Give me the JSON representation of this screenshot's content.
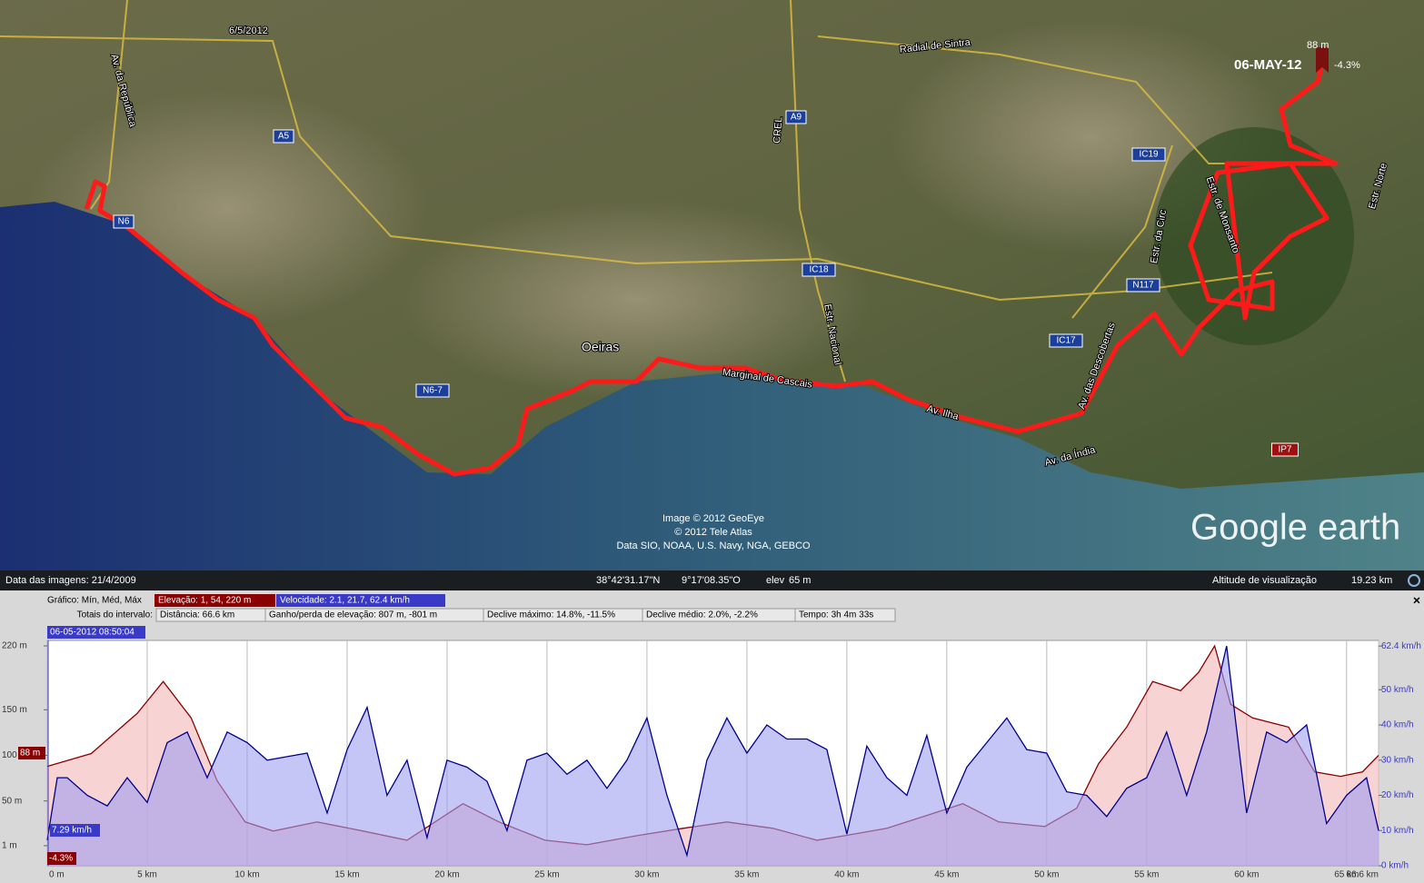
{
  "map": {
    "date_label": "6/5/2012",
    "labels": [
      "Radial de Sintra",
      "Av. da República",
      "Oeiras",
      "Estr. Nacional",
      "Av. das Descobertas",
      "Estr. de Monsanto",
      "Estr. da Circ",
      "Av. da Índia",
      "Marginal de Cascais",
      "Av. Ilha",
      "CREL",
      "Estr. Norte"
    ],
    "road_shields": [
      "A5",
      "A9",
      "IC18",
      "IC19",
      "N117",
      "IC17",
      "IP7",
      "N6-7",
      "N6"
    ],
    "attribution": [
      "Image © 2012 GeoEye",
      "© 2012 Tele Atlas",
      "Data SIO, NOAA, U.S. Navy, NGA, GEBCO"
    ],
    "logo": "Google earth",
    "marker": {
      "date": "06-MAY-12",
      "elevation": "88 m",
      "slope": "-4.3%"
    }
  },
  "status_bar": {
    "imagery_date": "Data das imagens: 21/4/2009",
    "latitude": "38°42'31.17\"N",
    "longitude": "9°17'08.35\"O",
    "elev_label": "elev",
    "elev": "65 m",
    "eye_label": "Altitude de visualização",
    "eye": "19.23 km"
  },
  "profile": {
    "graph_label": "Gráfico: Mín, Méd, Máx",
    "elevation_summary": "Elevação: 1, 54, 220 m",
    "speed_summary": "Velocidade: 2.1, 21.7, 62.4 km/h",
    "totals_label": "Totais do intervalo:",
    "totals": [
      "Distância: 66.6 km",
      "Ganho/perda de elevação: 807 m, -801 m",
      "Declive máximo: 14.8%, -11.5%",
      "Declive médio: 2.0%, -2.2%",
      "Tempo: 3h 4m 33s"
    ],
    "timestamp": "06-05-2012 08:50:04",
    "close": "×",
    "cursor": {
      "elevation": "88 m",
      "speed": "7.29 km/h",
      "slope": "-4.3%"
    }
  },
  "chart_data": {
    "type": "line",
    "xlim": [
      0,
      66.6
    ],
    "xticks": [
      {
        "value": 0,
        "label": "0 m"
      },
      {
        "value": 5,
        "label": "5 km"
      },
      {
        "value": 10,
        "label": "10 km"
      },
      {
        "value": 15,
        "label": "15 km"
      },
      {
        "value": 20,
        "label": "20 km"
      },
      {
        "value": 25,
        "label": "25 km"
      },
      {
        "value": 30,
        "label": "30 km"
      },
      {
        "value": 35,
        "label": "35 km"
      },
      {
        "value": 40,
        "label": "40 km"
      },
      {
        "value": 45,
        "label": "45 km"
      },
      {
        "value": 50,
        "label": "50 km"
      },
      {
        "value": 55,
        "label": "55 km"
      },
      {
        "value": 60,
        "label": "60 km"
      },
      {
        "value": 65,
        "label": "65 km"
      },
      {
        "value": 66.6,
        "label": "66.6 km"
      }
    ],
    "ylim": [
      -21,
      226
    ],
    "yticks": [
      {
        "value": 220,
        "label": "220 m"
      },
      {
        "value": 150,
        "label": "150 m"
      },
      {
        "value": 100,
        "label": "100 m"
      },
      {
        "value": 50,
        "label": "50 m"
      },
      {
        "value": 1,
        "label": "1 m"
      }
    ],
    "y2lim": [
      0,
      64
    ],
    "y2ticks": [
      {
        "value": 62.4,
        "label": "62.4 km/h"
      },
      {
        "value": 50,
        "label": "50 km/h"
      },
      {
        "value": 40,
        "label": "40 km/h"
      },
      {
        "value": 30,
        "label": "30 km/h"
      },
      {
        "value": 20,
        "label": "20 km/h"
      },
      {
        "value": 10,
        "label": "10 km/h"
      },
      {
        "value": 0,
        "label": "0 km/h"
      }
    ],
    "grid": true,
    "series": [
      {
        "color": "#8b0000",
        "fill": "#f4b6b6",
        "x": [
          0,
          2.2,
          4.5,
          5.8,
          7.2,
          8.5,
          9.9,
          11.3,
          13.5,
          15.8,
          18,
          20.8,
          22.6,
          24.9,
          27,
          29.5,
          31.8,
          34,
          36.3,
          38.5,
          39.9,
          42,
          44.4,
          45.8,
          47.6,
          49.9,
          51.5,
          52.6,
          54,
          55.3,
          56.7,
          57.6,
          58.4,
          59.2,
          60.3,
          62.1,
          63.4,
          64.7,
          65.8,
          66.6
        ],
        "values": [
          88,
          102,
          146,
          181,
          141,
          72,
          27,
          17,
          27,
          17,
          7,
          47,
          27,
          7,
          2,
          12,
          20,
          27,
          20,
          7,
          12,
          20,
          37,
          47,
          27,
          22,
          42,
          91,
          131,
          181,
          171,
          191,
          220,
          156,
          141,
          131,
          82,
          77,
          82,
          100
        ]
      },
      {
        "color": "#00008b",
        "fill": "#9e9ef0",
        "axis": "y2",
        "x": [
          0,
          0.5,
          1,
          2,
          3,
          4,
          5,
          6,
          7,
          8,
          9,
          10,
          11,
          12,
          13,
          14,
          15,
          16,
          17,
          18,
          19,
          20,
          21,
          22,
          23,
          24,
          25,
          26,
          27,
          28,
          29,
          30,
          31,
          32,
          33,
          34,
          35,
          36,
          37,
          38,
          39,
          40,
          41,
          42,
          43,
          44,
          45,
          46,
          47,
          48,
          49,
          50,
          51,
          52,
          53,
          54,
          55,
          56,
          57,
          58,
          59,
          60,
          61,
          62,
          63,
          64,
          65,
          66,
          66.6
        ],
        "values": [
          7.29,
          25,
          25,
          20,
          17,
          25,
          18,
          35,
          38,
          25,
          38,
          35,
          30,
          31,
          32,
          15,
          33,
          45,
          20,
          30,
          8,
          30,
          28,
          24,
          10,
          30,
          32,
          26,
          30,
          22,
          30,
          42,
          20,
          3,
          30,
          42,
          32,
          40,
          36,
          36,
          33,
          9,
          34,
          25,
          20,
          37,
          15,
          28,
          35,
          42,
          33,
          32,
          21,
          20,
          14,
          22,
          25,
          38,
          20,
          38,
          62.4,
          15,
          38,
          35,
          40,
          12,
          20,
          25,
          10
        ]
      }
    ]
  }
}
